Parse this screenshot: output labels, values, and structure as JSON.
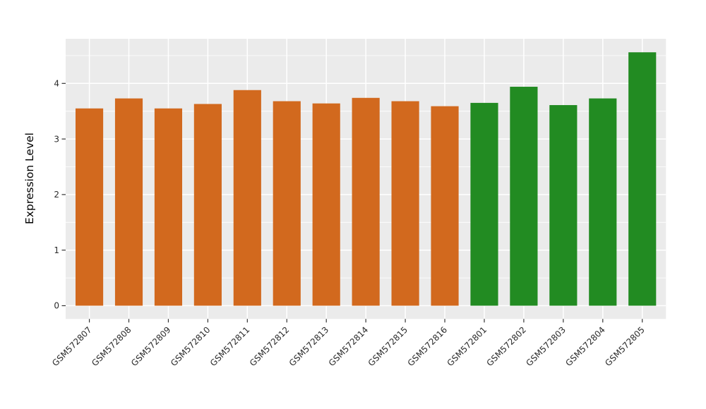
{
  "chart_data": {
    "type": "bar",
    "title": "",
    "xlabel": "",
    "ylabel": "Expression Level",
    "categories": [
      "GSM572807",
      "GSM572808",
      "GSM572809",
      "GSM572810",
      "GSM572811",
      "GSM572812",
      "GSM572813",
      "GSM572814",
      "GSM572815",
      "GSM572816",
      "GSM572801",
      "GSM572802",
      "GSM572803",
      "GSM572804",
      "GSM572805"
    ],
    "values": [
      3.55,
      3.73,
      3.55,
      3.63,
      3.88,
      3.68,
      3.64,
      3.74,
      3.68,
      3.59,
      3.65,
      3.94,
      3.61,
      3.73,
      4.56
    ],
    "bar_colors": [
      "#D2691E",
      "#D2691E",
      "#D2691E",
      "#D2691E",
      "#D2691E",
      "#D2691E",
      "#D2691E",
      "#D2691E",
      "#D2691E",
      "#D2691E",
      "#228B22",
      "#228B22",
      "#228B22",
      "#228B22",
      "#228B22"
    ],
    "groups": [
      {
        "name": "orange-group",
        "color": "#D2691E",
        "categories": [
          "GSM572807",
          "GSM572808",
          "GSM572809",
          "GSM572810",
          "GSM572811",
          "GSM572812",
          "GSM572813",
          "GSM572814",
          "GSM572815",
          "GSM572816"
        ]
      },
      {
        "name": "green-group",
        "color": "#228B22",
        "categories": [
          "GSM572801",
          "GSM572802",
          "GSM572803",
          "GSM572804",
          "GSM572805"
        ]
      }
    ],
    "ylim": [
      0,
      4.8
    ],
    "yticks": [
      0,
      1,
      2,
      3,
      4
    ],
    "yticks_minor": [
      0.5,
      1.5,
      2.5,
      3.5,
      4.5
    ],
    "grid": "on",
    "legend": "none",
    "panel_bg": "#EBEBEB",
    "grid_color": "#FFFFFF",
    "tick_mark_color": "#333333",
    "tick_label_color": "#2b2b2b",
    "x_tick_angle_deg": 45
  }
}
